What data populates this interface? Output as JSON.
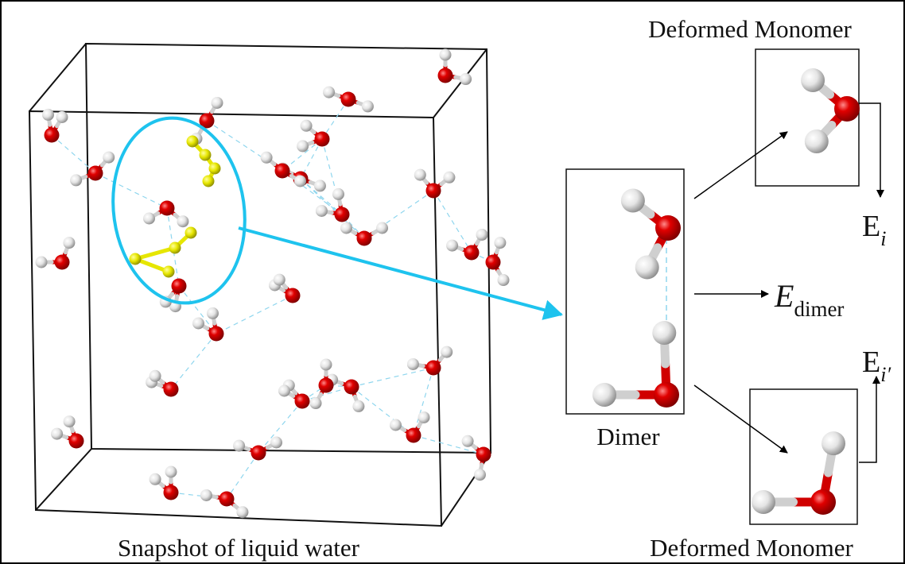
{
  "snapshot_label": "Snapshot of liquid water",
  "dimer_label": "Dimer",
  "monomer_top_label": "Deformed Monomer",
  "monomer_bottom_label": "Deformed Monomer",
  "energies": [
    {
      "symbol": "E",
      "subscript": "i"
    },
    {
      "symbol": "E",
      "subscript": "dimer"
    },
    {
      "symbol": "E",
      "subscript": "i′"
    }
  ]
}
